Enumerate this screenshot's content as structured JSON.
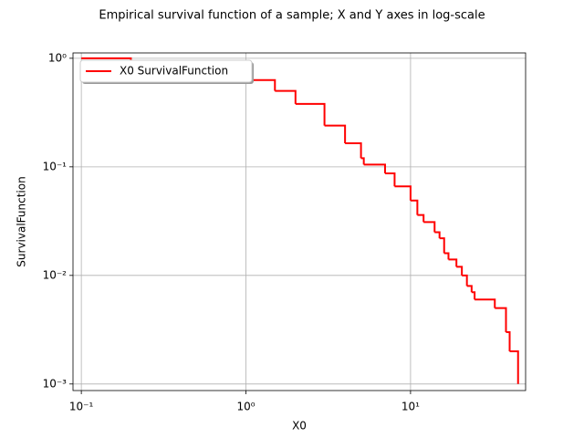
{
  "chart_data": {
    "type": "line",
    "title": "Empirical survival function of a sample; X and Y axes in log-scale",
    "x_label": "X0",
    "y_label": "SurvivalFunction",
    "x_scale": "log",
    "y_scale": "log",
    "grid": true,
    "legend_position": "upper left",
    "drawstyle": "steps-post",
    "x": [
      0.1,
      0.2,
      0.3,
      0.5,
      0.7,
      1,
      1.5,
      2,
      3,
      4,
      5,
      5.2,
      7,
      8,
      10,
      11,
      12,
      14,
      15,
      16,
      17,
      19,
      20.5,
      22,
      23.5,
      24.5,
      32.5,
      38,
      40,
      45
    ],
    "series": [
      {
        "name": "X0 SurvivalFunction",
        "color": "#ff0000",
        "values": [
          1,
          0.95,
          0.9,
          0.82,
          0.72,
          0.63,
          0.5,
          0.38,
          0.24,
          0.165,
          0.12,
          0.105,
          0.087,
          0.066,
          0.049,
          0.036,
          0.031,
          0.025,
          0.022,
          0.016,
          0.014,
          0.012,
          0.01,
          0.008,
          0.007,
          0.006,
          0.005,
          0.003,
          0.002,
          0.001
        ]
      }
    ],
    "xlim": [
      0.089,
      50
    ],
    "ylim": [
      0.00087,
      1.12
    ],
    "xticks": [
      {
        "value": 0.1,
        "label": "10⁻¹"
      },
      {
        "value": 1,
        "label": "10⁰"
      },
      {
        "value": 10,
        "label": "10¹"
      }
    ],
    "yticks": [
      {
        "value": 0.001,
        "label": "10⁻³"
      },
      {
        "value": 0.01,
        "label": "10⁻²"
      },
      {
        "value": 0.1,
        "label": "10⁻¹"
      },
      {
        "value": 1,
        "label": "10⁰"
      }
    ]
  }
}
